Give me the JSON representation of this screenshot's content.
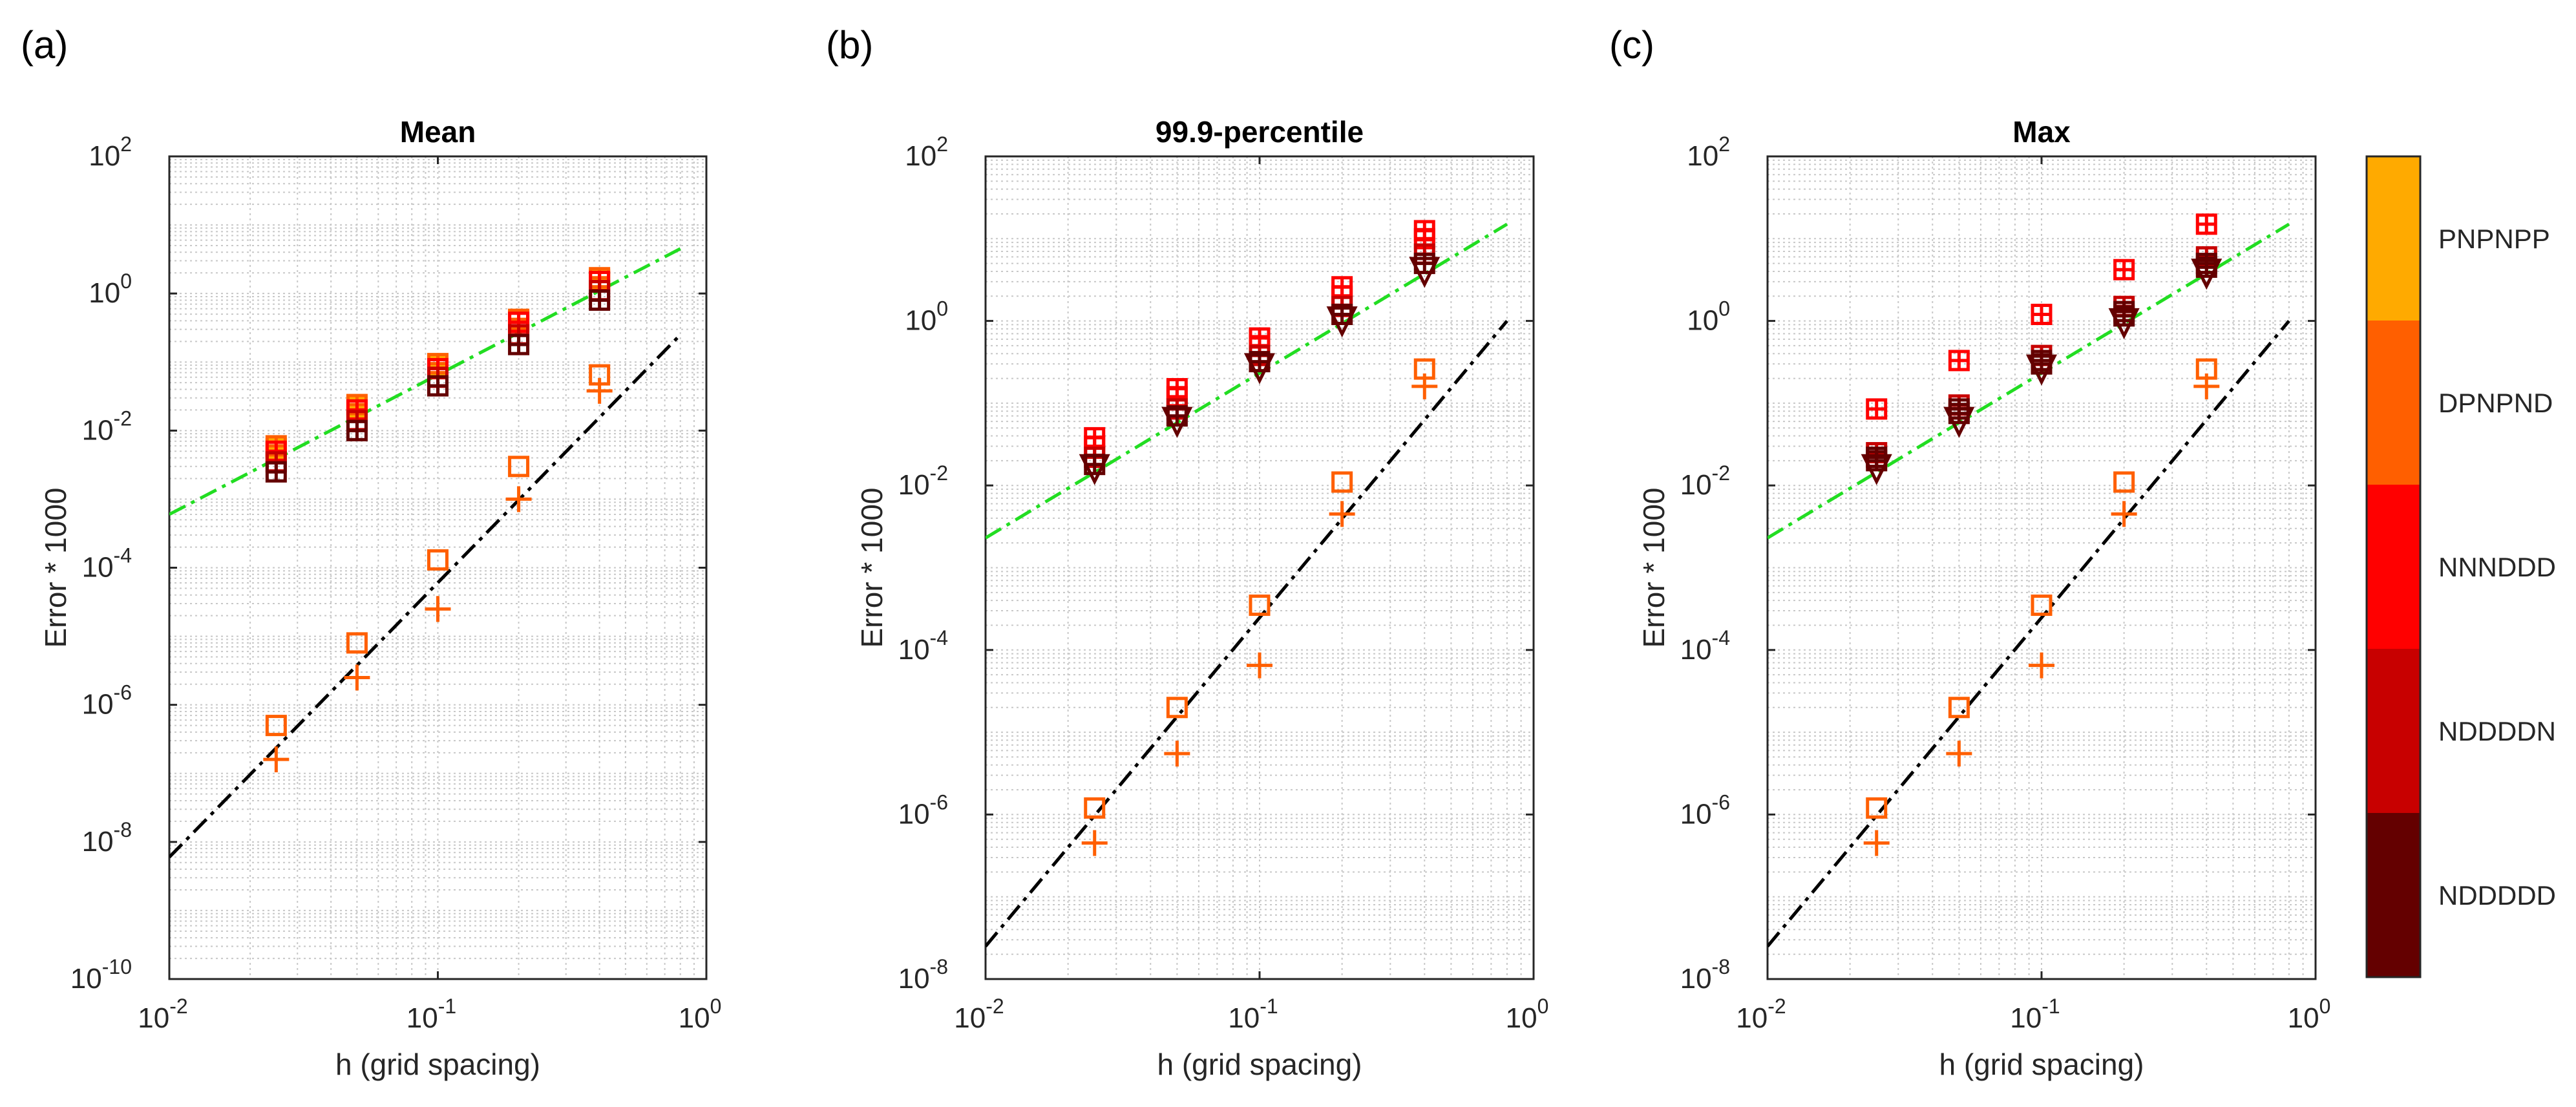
{
  "figure": {
    "colorbar": {
      "labels": [
        "PNPNPP",
        "DPNPND",
        "NNNDDD",
        "NDDDDN",
        "NDDDDD"
      ],
      "colors": [
        "#FFAA00",
        "#FF5F00",
        "#FF0000",
        "#C80000",
        "#640000"
      ]
    }
  },
  "chart_data": [
    {
      "type": "scatter",
      "panel_label": "(a)",
      "title": "Mean",
      "xlabel": "h (grid spacing)",
      "ylabel": "Error * 1000",
      "xscale": "log",
      "yscale": "log",
      "xlim": [
        0.01,
        1
      ],
      "ylim": [
        1e-10,
        100
      ],
      "x_ticks": [
        {
          "base": "10",
          "exp": "-2"
        },
        {
          "base": "10",
          "exp": "-1"
        },
        {
          "base": "10",
          "exp": "0"
        }
      ],
      "y_ticks": [
        {
          "base": "10",
          "exp": "-10"
        },
        {
          "base": "10",
          "exp": "-8"
        },
        {
          "base": "10",
          "exp": "-6"
        },
        {
          "base": "10",
          "exp": "-4"
        },
        {
          "base": "10",
          "exp": "-2"
        },
        {
          "base": "10",
          "exp": "0"
        },
        {
          "base": "10",
          "exp": "2"
        }
      ],
      "grid": true,
      "x": [
        0.025,
        0.05,
        0.1,
        0.2,
        0.4
      ],
      "series": [
        {
          "name": "PNPNPP",
          "marker": "square-plus",
          "color": "#FFAA00",
          "values": [
            0.0055,
            0.022,
            0.088,
            0.4,
            1.6
          ]
        },
        {
          "name": "DPNPND",
          "marker": "square-plus",
          "color": "#FF5F00",
          "values": [
            0.006,
            0.024,
            0.095,
            0.42,
            1.7
          ]
        },
        {
          "name": "NNNDDD",
          "marker": "square-plus",
          "color": "#FF0000",
          "values": [
            0.005,
            0.02,
            0.08,
            0.38,
            1.5
          ]
        },
        {
          "name": "NDDDDN",
          "marker": "square-plus",
          "color": "#C80000",
          "values": [
            0.0035,
            0.014,
            0.06,
            0.25,
            1.1
          ]
        },
        {
          "name": "NDDDDD",
          "marker": "square-plus",
          "color": "#640000",
          "values": [
            0.0025,
            0.01,
            0.045,
            0.18,
            0.8
          ]
        },
        {
          "name": "square",
          "marker": "square",
          "color": "#FF5F00",
          "values": [
            5e-07,
            8e-06,
            0.00013,
            0.003,
            0.065
          ]
        },
        {
          "name": "plus",
          "marker": "plus",
          "color": "#FF5F00",
          "values": [
            1.6e-07,
            2.5e-06,
            2.5e-05,
            0.001,
            0.038
          ]
        }
      ],
      "lines": [
        {
          "name": "green-ref",
          "style": "dash-dot",
          "color": "#22DD22",
          "points": [
            [
              0.01,
              0.0006
            ],
            [
              0.8,
              4.5
            ]
          ]
        },
        {
          "name": "black-ref",
          "style": "dash-dot",
          "color": "#000000",
          "points": [
            [
              0.01,
              6e-09
            ],
            [
              0.8,
              0.25
            ]
          ]
        }
      ]
    },
    {
      "type": "scatter",
      "panel_label": "(b)",
      "title": "99.9-percentile",
      "xlabel": "h (grid spacing)",
      "ylabel": "Error * 1000",
      "xscale": "log",
      "yscale": "log",
      "xlim": [
        0.01,
        1
      ],
      "ylim": [
        1e-08,
        100
      ],
      "x_ticks": [
        {
          "base": "10",
          "exp": "-2"
        },
        {
          "base": "10",
          "exp": "-1"
        },
        {
          "base": "10",
          "exp": "0"
        }
      ],
      "y_ticks": [
        {
          "base": "10",
          "exp": "-8"
        },
        {
          "base": "10",
          "exp": "-6"
        },
        {
          "base": "10",
          "exp": "-4"
        },
        {
          "base": "10",
          "exp": "-2"
        },
        {
          "base": "10",
          "exp": "0"
        },
        {
          "base": "10",
          "exp": "2"
        }
      ],
      "grid": true,
      "x": [
        0.025,
        0.05,
        0.1,
        0.2,
        0.4
      ],
      "series": [
        {
          "name": "PNPNPP",
          "marker": "square-plus",
          "color": "#FF0000",
          "values": [
            0.038,
            0.15,
            0.62,
            2.6,
            12.5
          ]
        },
        {
          "name": "DPNPND",
          "marker": "square-plus",
          "color": "#FF0000",
          "values": [
            0.03,
            0.12,
            0.5,
            2.0,
            10.0
          ]
        },
        {
          "name": "NNNDDD",
          "marker": "square-plus",
          "color": "#C80000",
          "values": [
            0.022,
            0.085,
            0.38,
            1.5,
            6.5
          ]
        },
        {
          "name": "NDDDDN",
          "marker": "square-plus",
          "color": "#640000",
          "values": [
            0.018,
            0.07,
            0.32,
            1.2,
            5.0
          ]
        },
        {
          "name": "NDDDDD",
          "marker": "triangle-down",
          "color": "#640000",
          "values": [
            0.016,
            0.06,
            0.27,
            1.0,
            4.0
          ]
        },
        {
          "name": "square",
          "marker": "square",
          "color": "#FF5F00",
          "values": [
            1.2e-06,
            2e-05,
            0.00035,
            0.011,
            0.26
          ]
        },
        {
          "name": "plus",
          "marker": "plus",
          "color": "#FF5F00",
          "values": [
            4.5e-07,
            5.5e-06,
            6.5e-05,
            0.0045,
            0.16
          ]
        }
      ],
      "lines": [
        {
          "name": "green-ref",
          "style": "dash-dot",
          "color": "#22DD22",
          "points": [
            [
              0.01,
              0.0023
            ],
            [
              0.8,
              15
            ]
          ]
        },
        {
          "name": "black-ref",
          "style": "dash-dot",
          "color": "#000000",
          "points": [
            [
              0.01,
              2.5e-08
            ],
            [
              0.8,
              1.0
            ]
          ]
        }
      ]
    },
    {
      "type": "scatter",
      "panel_label": "(c)",
      "title": "Max",
      "xlabel": "h (grid spacing)",
      "ylabel": "Error * 1000",
      "xscale": "log",
      "yscale": "log",
      "xlim": [
        0.01,
        1
      ],
      "ylim": [
        1e-08,
        100
      ],
      "x_ticks": [
        {
          "base": "10",
          "exp": "-2"
        },
        {
          "base": "10",
          "exp": "-1"
        },
        {
          "base": "10",
          "exp": "0"
        }
      ],
      "y_ticks": [
        {
          "base": "10",
          "exp": "-8"
        },
        {
          "base": "10",
          "exp": "-6"
        },
        {
          "base": "10",
          "exp": "-4"
        },
        {
          "base": "10",
          "exp": "-2"
        },
        {
          "base": "10",
          "exp": "0"
        },
        {
          "base": "10",
          "exp": "2"
        }
      ],
      "grid": true,
      "x": [
        0.025,
        0.05,
        0.1,
        0.2,
        0.4
      ],
      "series": [
        {
          "name": "PNPNPP",
          "marker": "square-plus",
          "color": "#FF0000",
          "values": [
            0.085,
            0.33,
            1.2,
            4.2,
            15.0
          ]
        },
        {
          "name": "DPNPND",
          "marker": "square-plus",
          "color": "#C80000",
          "values": [
            0.025,
            0.095,
            0.38,
            1.5,
            6.0
          ]
        },
        {
          "name": "NNNDDD",
          "marker": "square-plus",
          "color": "#640000",
          "values": [
            0.022,
            0.085,
            0.33,
            1.3,
            5.0
          ]
        },
        {
          "name": "NDDDDN",
          "marker": "square-plus",
          "color": "#640000",
          "values": [
            0.02,
            0.075,
            0.3,
            1.15,
            4.5
          ]
        },
        {
          "name": "NDDDDD",
          "marker": "triangle-down",
          "color": "#640000",
          "values": [
            0.016,
            0.06,
            0.26,
            0.95,
            3.8
          ]
        },
        {
          "name": "square",
          "marker": "square",
          "color": "#FF5F00",
          "values": [
            1.2e-06,
            2e-05,
            0.00035,
            0.011,
            0.26
          ]
        },
        {
          "name": "plus",
          "marker": "plus",
          "color": "#FF5F00",
          "values": [
            4.5e-07,
            5.5e-06,
            6.5e-05,
            0.0045,
            0.16
          ]
        }
      ],
      "lines": [
        {
          "name": "green-ref",
          "style": "dash-dot",
          "color": "#22DD22",
          "points": [
            [
              0.01,
              0.0023
            ],
            [
              0.8,
              15
            ]
          ]
        },
        {
          "name": "black-ref",
          "style": "dash-dot",
          "color": "#000000",
          "points": [
            [
              0.01,
              2.5e-08
            ],
            [
              0.8,
              1.0
            ]
          ]
        }
      ]
    }
  ]
}
